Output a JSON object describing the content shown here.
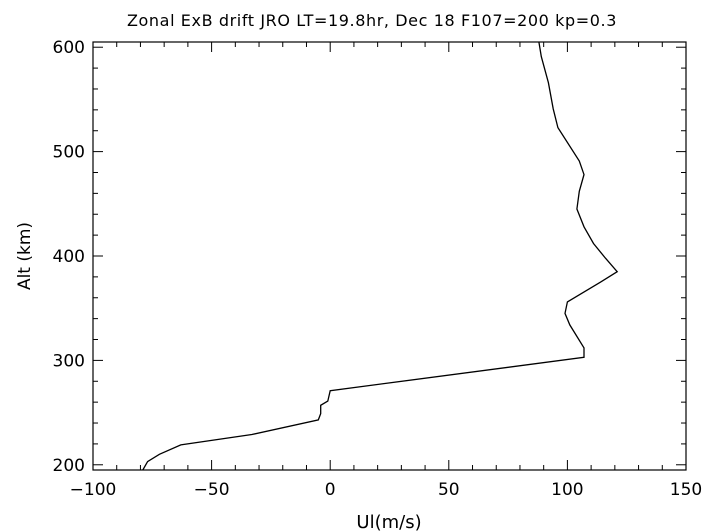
{
  "chart_data": {
    "type": "line",
    "title": "Zonal ExB drift JRO LT=19.8hr, Dec 18 F107=200 kp=0.3",
    "xlabel": "Ul(m/s)",
    "ylabel": "Alt (km)",
    "xlim": [
      -100,
      150
    ],
    "ylim": [
      195,
      605
    ],
    "xticks": [
      -100,
      -50,
      0,
      50,
      100,
      150
    ],
    "yticks": [
      200,
      300,
      400,
      500,
      600
    ],
    "grid": false,
    "line_color": "#000000",
    "series": [
      {
        "x": [
          -79,
          -77,
          -72,
          -63,
          -33,
          -5,
          -4,
          -4,
          -1,
          0,
          107,
          107,
          101,
          99,
          100,
          114,
          121,
          116,
          111,
          107,
          104,
          105,
          107,
          105,
          96,
          94,
          92,
          89,
          88
        ],
        "y": [
          195,
          203,
          210,
          219,
          229,
          243,
          249,
          257,
          261,
          271,
          303,
          312,
          334,
          345,
          356,
          375,
          385,
          398,
          412,
          428,
          445,
          462,
          478,
          491,
          523,
          541,
          566,
          591,
          605
        ]
      }
    ]
  }
}
